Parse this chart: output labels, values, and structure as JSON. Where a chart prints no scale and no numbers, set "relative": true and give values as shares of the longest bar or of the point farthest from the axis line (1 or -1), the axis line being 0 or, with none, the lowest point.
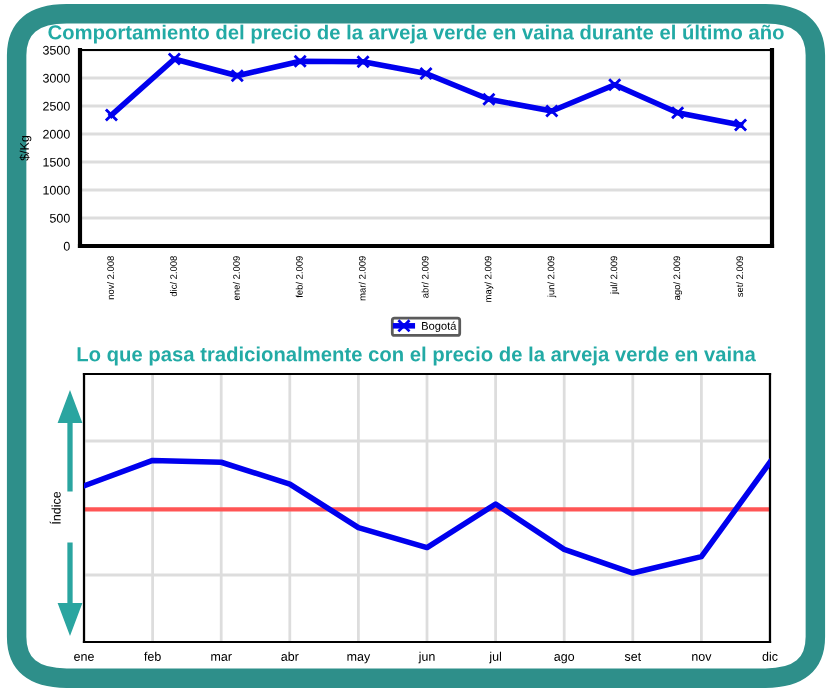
{
  "chart_data": [
    {
      "type": "line",
      "title": "Comportamiento del precio de la arveja verde en vaina durante el último año",
      "ylabel": "$/Kg",
      "categories": [
        "nov/ 2.008",
        "dic/ 2.008",
        "ene/ 2.009",
        "feb/ 2.009",
        "mar/ 2.009",
        "abr/ 2.009",
        "may/ 2.009",
        "jun/ 2.009",
        "jul/ 2.009",
        "ago/ 2.009",
        "set/ 2.009"
      ],
      "series": [
        {
          "name": "Bogotá",
          "color": "#0000ee",
          "values": [
            2340,
            3340,
            3040,
            3300,
            3290,
            3080,
            2620,
            2410,
            2880,
            2380,
            2160
          ]
        }
      ],
      "ylim": [
        0,
        3500
      ],
      "yticks": [
        0,
        500,
        1000,
        1500,
        2000,
        2500,
        3000,
        3500
      ],
      "grid": "y",
      "legend": "bottom",
      "marker": "cross",
      "line_style": "solid"
    },
    {
      "type": "line",
      "title": "Lo que pasa tradicionalmente con el precio de la arveja verde en vaina",
      "ylabel": "Índice",
      "relative": true,
      "categories": [
        "ene",
        "feb",
        "mar",
        "abr",
        "may",
        "jun",
        "jul",
        "ago",
        "set",
        "nov",
        "dic"
      ],
      "series": [
        {
          "color": "#0000ee",
          "values": [
            0.86,
            1,
            0.99,
            0.87,
            0.63,
            0.52,
            0.76,
            0.51,
            0.38,
            0.47,
            0.99
          ]
        }
      ],
      "ref_lines": [
        {
          "axis": "y",
          "value": 0.73,
          "color": "#ff5555"
        }
      ],
      "grid": true,
      "line_style": "solid"
    }
  ]
}
